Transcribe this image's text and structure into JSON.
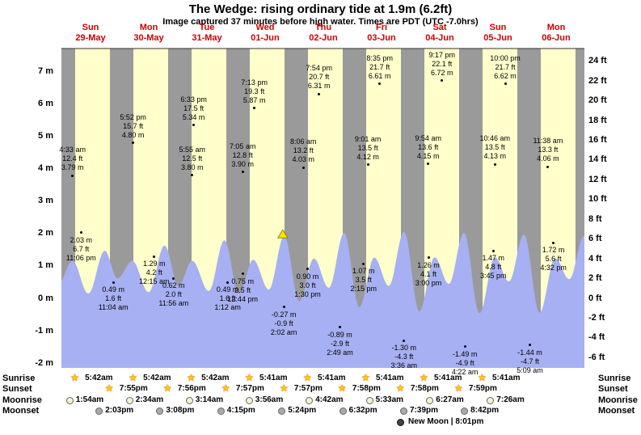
{
  "header": {
    "title": "The Wedge: rising  ordinary tide at 1.9m (6.2ft)",
    "subtitle": "Image captured 37 minutes before high water. Times are PDT (UTC -7.0hrs)"
  },
  "side_labels": {
    "sunrise": "Sunrise",
    "sunset": "Sunset",
    "moonrise": "Moonrise",
    "moonset": "Moonset"
  },
  "chart_data": {
    "type": "area",
    "title": "The Wedge tide height over 9 days",
    "grid": false,
    "y_axis_left_unit": "m",
    "y_axis_right_unit": "ft",
    "y_axis_m": [
      7,
      6,
      5,
      4,
      3,
      2,
      1,
      0,
      -1,
      -2
    ],
    "y_axis_ft": [
      24,
      22,
      20,
      18,
      16,
      14,
      12,
      10,
      8,
      6,
      4,
      2,
      0,
      -2,
      -4,
      -6
    ],
    "days": [
      {
        "name": "Sun",
        "date": "29-May"
      },
      {
        "name": "Mon",
        "date": "30-May"
      },
      {
        "name": "Tue",
        "date": "31-May"
      },
      {
        "name": "Wed",
        "date": "01-Jun"
      },
      {
        "name": "Thu",
        "date": "02-Jun"
      },
      {
        "name": "Fri",
        "date": "03-Jun"
      },
      {
        "name": "Sat",
        "date": "04-Jun"
      },
      {
        "name": "Sun",
        "date": "05-Jun"
      },
      {
        "name": "Mon",
        "date": "06-Jun"
      }
    ],
    "day_colors": {
      "day": "#ffffcb",
      "night": "#9a9a9a",
      "tide_fill": "#a6b0f2"
    },
    "sun": {
      "rise_hour": 5.7,
      "set_hour": 19.93
    },
    "tide_events": [
      {
        "day": -1,
        "hour": 23.0,
        "height_m": "1.6",
        "kind": "low",
        "labeled": false
      },
      {
        "day": 0,
        "hour": 4.55,
        "time": "4:33 am",
        "height_ft": "12.4",
        "height_m": "3.79",
        "kind": "high",
        "label_dx": 0,
        "labeled": true
      },
      {
        "day": 0,
        "hour": 11.067,
        "time": "11:04 am",
        "height_ft": "1.6",
        "height_m": "0.49",
        "kind": "low",
        "label_dx": 31,
        "labeled": true
      },
      {
        "day": 0,
        "hour": 17.867,
        "time": "5:52 pm",
        "height_ft": "15.7",
        "height_m": "4.80",
        "kind": "high",
        "label_dx": 35,
        "labeled": true
      },
      {
        "day": 0,
        "hour": 23.1,
        "time": "11:06 pm",
        "height_ft": "6.7",
        "height_m": "2.03",
        "kind": "low",
        "label_dx": -45,
        "labeled": true
      },
      {
        "day": 1,
        "hour": 5.25,
        "height_m": "3.78",
        "kind": "high",
        "labeled": false
      },
      {
        "day": 1,
        "hour": 11.933,
        "time": "11:56 am",
        "height_ft": "2.0",
        "height_m": "0.62",
        "kind": "low",
        "label_dx": 31,
        "labeled": true
      },
      {
        "day": 1,
        "hour": 18.55,
        "time": "6:33 pm",
        "height_ft": "17.5",
        "height_m": "5.34",
        "kind": "high",
        "label_dx": 36,
        "labeled": true
      },
      {
        "day": 2,
        "hour": 0.25,
        "time": "12:15 am",
        "height_ft": "4.2",
        "height_m": "1.29",
        "kind": "low",
        "label_dx": -30,
        "labeled": true
      },
      {
        "day": 2,
        "hour": 5.917,
        "time": "5:55 am",
        "height_ft": "12.5",
        "height_m": "3.80",
        "kind": "high",
        "label_dx": 0,
        "labeled": true
      },
      {
        "day": 2,
        "hour": 12.733,
        "time": "12:44 pm",
        "height_ft": "2.5",
        "height_m": "0.75",
        "kind": "low",
        "label_dx": 42,
        "labeled": true
      },
      {
        "day": 2,
        "hour": 19.217,
        "time": "7:13 pm",
        "height_ft": "19.3",
        "height_m": "5.87",
        "kind": "high",
        "label_dx": 37,
        "labeled": true
      },
      {
        "day": 3,
        "hour": 1.2,
        "time": "1:12 am",
        "height_ft": "1.6",
        "height_m": "0.49",
        "kind": "low",
        "label_dx": -14,
        "labeled": true
      },
      {
        "day": 3,
        "hour": 7.083,
        "time": "7:05 am",
        "height_ft": "12.8",
        "height_m": "3.90",
        "kind": "high",
        "label_dx": -13,
        "labeled": true
      },
      {
        "day": 3,
        "hour": 13.5,
        "time": "1:30 pm",
        "height_ft": "3.0",
        "height_m": "0.90",
        "kind": "low",
        "label_dx": 48,
        "labeled": true
      },
      {
        "day": 3,
        "hour": 19.9,
        "time": "7:54 pm",
        "height_ft": "20.7",
        "height_m": "6.31",
        "kind": "high",
        "label_dx": 43,
        "labeled": true
      },
      {
        "day": 4,
        "hour": 2.033,
        "time": "2:02 am",
        "height_ft": "-0.9",
        "height_m": "-0.27",
        "kind": "low",
        "label_dx": -19,
        "labeled": true
      },
      {
        "day": 4,
        "hour": 8.1,
        "time": "8:06 am",
        "height_ft": "13.2",
        "height_m": "4.03",
        "kind": "high",
        "label_dx": -13,
        "labeled": true
      },
      {
        "day": 4,
        "hour": 14.25,
        "time": "2:15 pm",
        "height_ft": "3.5",
        "height_m": "1.07",
        "kind": "low",
        "label_dx": 43,
        "labeled": true
      },
      {
        "day": 4,
        "hour": 20.583,
        "time": "8:35 pm",
        "height_ft": "21.7",
        "height_m": "6.61",
        "kind": "high",
        "label_dx": 44,
        "labeled": true
      },
      {
        "day": 5,
        "hour": 2.817,
        "time": "2:49 am",
        "height_ft": "-2.9",
        "height_m": "-0.89",
        "kind": "low",
        "label_dx": -24,
        "labeled": true
      },
      {
        "day": 5,
        "hour": 9.017,
        "time": "9:01 am",
        "height_ft": "13.5",
        "height_m": "4.12",
        "kind": "high",
        "label_dx": -8,
        "labeled": true
      },
      {
        "day": 5,
        "hour": 15.0,
        "time": "3:00 pm",
        "height_ft": "4.1",
        "height_m": "1.26",
        "kind": "low",
        "label_dx": 49,
        "labeled": true
      },
      {
        "day": 5,
        "hour": 21.283,
        "time": "9:17 pm",
        "height_ft": "22.1",
        "height_m": "6.72",
        "kind": "high",
        "label_dx": 47,
        "labeled": true
      },
      {
        "day": 6,
        "hour": 3.6,
        "time": "3:36 am",
        "height_ft": "-4.3",
        "height_m": "-1.30",
        "kind": "low",
        "label_dx": -19,
        "labeled": true
      },
      {
        "day": 6,
        "hour": 9.9,
        "time": "9:54 am",
        "height_ft": "13.6",
        "height_m": "4.15",
        "kind": "high",
        "label_dx": -8,
        "labeled": true
      },
      {
        "day": 6,
        "hour": 15.75,
        "time": "3:45 pm",
        "height_ft": "4.8",
        "height_m": "1.47",
        "kind": "low",
        "label_dx": 55,
        "labeled": true
      },
      {
        "day": 6,
        "hour": 22.0,
        "time": "10:00 pm",
        "height_ft": "21.7",
        "height_m": "6.62",
        "kind": "high",
        "label_dx": 51,
        "labeled": true
      },
      {
        "day": 7,
        "hour": 4.367,
        "time": "4:22 am",
        "height_ft": "-4.9",
        "height_m": "-1.49",
        "kind": "low",
        "label_dx": -18,
        "labeled": true
      },
      {
        "day": 7,
        "hour": 10.767,
        "time": "10:46 am",
        "height_ft": "13.5",
        "height_m": "4.13",
        "kind": "high",
        "label_dx": 0,
        "labeled": true
      },
      {
        "day": 7,
        "hour": 16.533,
        "time": "4:32 pm",
        "height_ft": "5.6",
        "height_m": "1.72",
        "kind": "low",
        "label_dx": 55,
        "labeled": true
      },
      {
        "day": 7,
        "hour": 22.75,
        "height_m": "6.45",
        "kind": "high",
        "labeled": false
      },
      {
        "day": 8,
        "hour": 5.15,
        "time": "5:09 am",
        "height_ft": "-4.7",
        "height_m": "-1.44",
        "kind": "low",
        "label_dx": -12,
        "labeled": true
      },
      {
        "day": 8,
        "hour": 11.633,
        "time": "11:38 am",
        "height_ft": "13.3",
        "height_m": "4.06",
        "kind": "high",
        "label_dx": -9,
        "labeled": true
      },
      {
        "day": 8,
        "hour": 17.4,
        "height_m": "1.95",
        "kind": "low",
        "labeled": false
      },
      {
        "day": 8,
        "hour": 23.5,
        "height_m": "6.3",
        "kind": "high",
        "labeled": false
      }
    ],
    "current_marker": {
      "day": 3,
      "hour": 19.283,
      "height_m": "1.9",
      "height_ft": "6.2",
      "color": "#ffe400"
    },
    "sun_moon": {
      "sunrise": [
        {
          "day": 0,
          "hour": 5.7,
          "time": "5:42am"
        },
        {
          "day": 1,
          "hour": 5.7,
          "time": "5:42am"
        },
        {
          "day": 2,
          "hour": 5.7,
          "time": "5:42am"
        },
        {
          "day": 3,
          "hour": 5.683,
          "time": "5:41am"
        },
        {
          "day": 4,
          "hour": 5.683,
          "time": "5:41am"
        },
        {
          "day": 5,
          "hour": 5.683,
          "time": "5:41am"
        },
        {
          "day": 6,
          "hour": 5.683,
          "time": "5:41am"
        },
        {
          "day": 7,
          "hour": 5.683,
          "time": "5:41am"
        }
      ],
      "sunset": [
        {
          "day": 0,
          "hour": 19.917,
          "time": "7:55pm"
        },
        {
          "day": 1,
          "hour": 19.933,
          "time": "7:56pm"
        },
        {
          "day": 2,
          "hour": 19.95,
          "time": "7:57pm"
        },
        {
          "day": 3,
          "hour": 19.95,
          "time": "7:57pm"
        },
        {
          "day": 4,
          "hour": 19.967,
          "time": "7:58pm"
        },
        {
          "day": 5,
          "hour": 19.967,
          "time": "7:58pm"
        },
        {
          "day": 6,
          "hour": 19.983,
          "time": "7:59pm"
        }
      ],
      "moonrise": [
        {
          "day": 0,
          "hour": 1.9,
          "time": "1:54am"
        },
        {
          "day": 1,
          "hour": 2.567,
          "time": "2:34am"
        },
        {
          "day": 2,
          "hour": 3.233,
          "time": "3:14am"
        },
        {
          "day": 3,
          "hour": 3.933,
          "time": "3:56am"
        },
        {
          "day": 4,
          "hour": 4.7,
          "time": "4:42am"
        },
        {
          "day": 5,
          "hour": 5.55,
          "time": "5:33am"
        },
        {
          "day": 6,
          "hour": 6.45,
          "time": "6:27am"
        },
        {
          "day": 7,
          "hour": 7.433,
          "time": "7:26am"
        }
      ],
      "moonset": [
        {
          "day": 0,
          "hour": 14.05,
          "time": "2:03pm"
        },
        {
          "day": 1,
          "hour": 15.133,
          "time": "3:08pm"
        },
        {
          "day": 2,
          "hour": 16.25,
          "time": "4:15pm"
        },
        {
          "day": 3,
          "hour": 17.4,
          "time": "5:24pm"
        },
        {
          "day": 4,
          "hour": 18.533,
          "time": "6:32pm"
        },
        {
          "day": 5,
          "hour": 19.65,
          "time": "7:39pm"
        },
        {
          "day": 6,
          "hour": 20.7,
          "time": "8:42pm"
        }
      ],
      "new_moon": {
        "label": "New Moon | 8:01pm"
      }
    }
  }
}
